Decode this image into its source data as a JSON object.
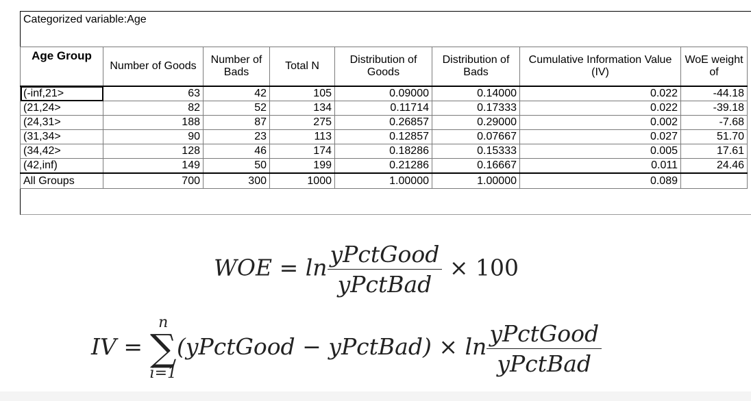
{
  "caption": "Categorized variable:Age",
  "table": {
    "headers": [
      "Age Group",
      "Number of Goods",
      "Number of Bads",
      "Total N",
      "Distribution of Goods",
      "Distribution of Bads",
      "Cumulative Information Value (IV)",
      "WoE weight of"
    ],
    "rows": [
      [
        "(-inf,21>",
        "63",
        "42",
        "105",
        "0.09000",
        "0.14000",
        "0.022",
        "-44.18"
      ],
      [
        "(21,24>",
        "82",
        "52",
        "134",
        "0.11714",
        "0.17333",
        "0.022",
        "-39.18"
      ],
      [
        "(24,31>",
        "188",
        "87",
        "275",
        "0.26857",
        "0.29000",
        "0.002",
        "-7.68"
      ],
      [
        "(31,34>",
        "90",
        "23",
        "113",
        "0.12857",
        "0.07667",
        "0.027",
        "51.70"
      ],
      [
        "(34,42>",
        "128",
        "46",
        "174",
        "0.18286",
        "0.15333",
        "0.005",
        "17.61"
      ],
      [
        "(42,inf)",
        "149",
        "50",
        "199",
        "0.21286",
        "0.16667",
        "0.011",
        "24.46"
      ]
    ],
    "total_row": [
      "All Groups",
      "700",
      "300",
      "1000",
      "1.00000",
      "1.00000",
      "0.089",
      ""
    ]
  },
  "formula_woe": {
    "lhs": "WOE",
    "eq": "=",
    "ln": "ln",
    "numerator": "yPctGood",
    "denominator": "yPctBad",
    "times": "×",
    "factor": "100"
  },
  "formula_iv": {
    "lhs": "IV",
    "eq": "=",
    "sum_upper": "n",
    "sigma": "∑",
    "sum_lower": "i=1",
    "term": "(yPctGood − yPctBad)",
    "times": "×",
    "ln": "ln",
    "numerator": "yPctGood",
    "denominator": "yPctBad"
  }
}
